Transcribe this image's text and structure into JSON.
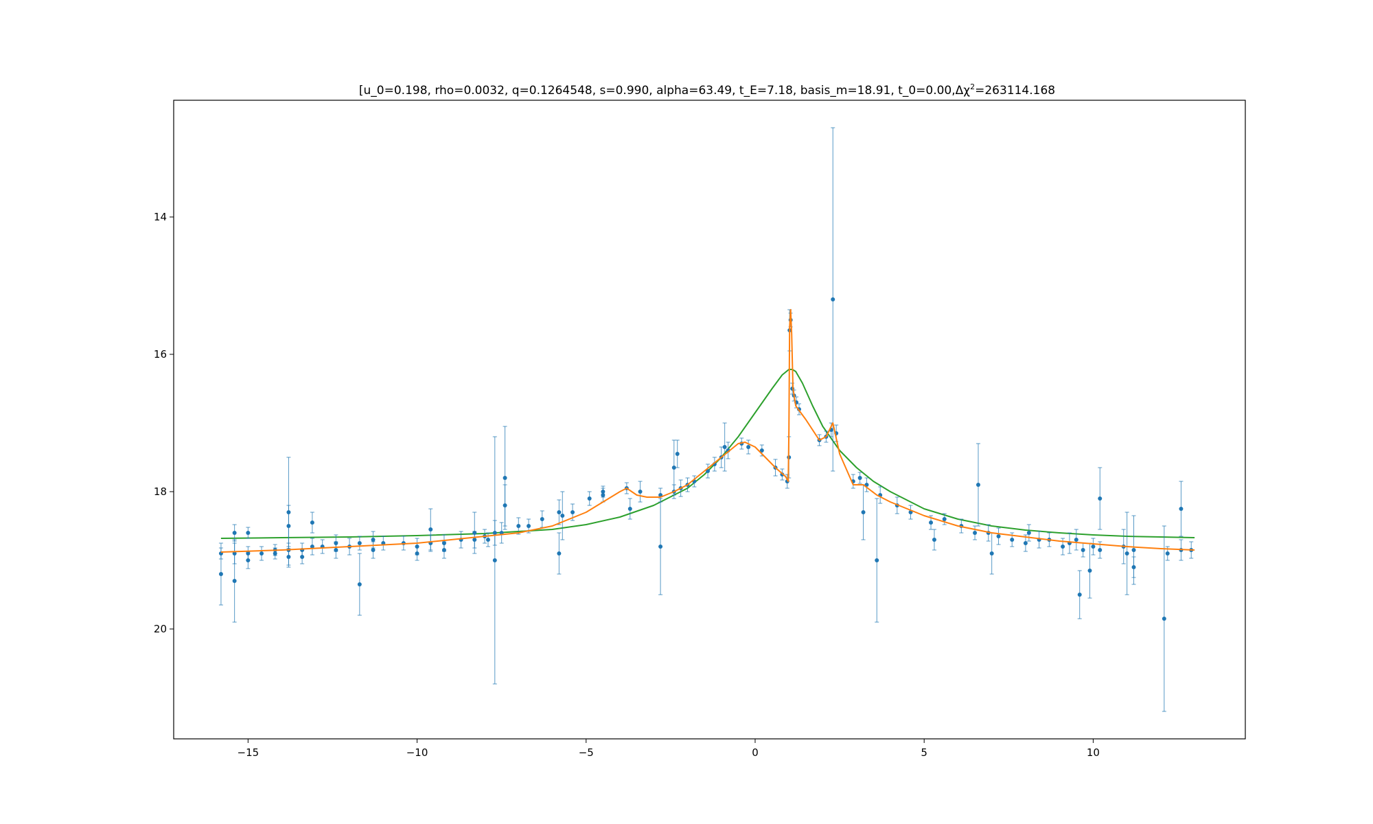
{
  "chart_data": {
    "type": "scatter",
    "title": "[u_0=0.198, rho=0.0032, q=0.1264548, s=0.990, alpha=63.49, t_E=7.18, basis_m=18.91, t_0=0.00,Δχ²=263114.168",
    "title_segments": [
      {
        "text": "[u_0=0.198, rho=0.0032, q=0.1264548, s=0.990, alpha=63.49, t_E=7.18, basis_m=18.91, t_0=0.00,Δ",
        "sup": false
      },
      {
        "text": "χ",
        "sup": false
      },
      {
        "text": "2",
        "sup": true
      },
      {
        "text": "=263114.168",
        "sup": false
      }
    ],
    "xlabel": "",
    "ylabel": "",
    "xlim": [
      -17.2,
      14.5
    ],
    "ylim": [
      21.6,
      12.3
    ],
    "y_inverted": true,
    "grid": false,
    "legend": null,
    "x_ticks": [
      -15,
      -10,
      -5,
      0,
      5,
      10
    ],
    "y_ticks": [
      14,
      16,
      18,
      20
    ],
    "colors": {
      "observations": "#1f77b4",
      "binary_model": "#ff7f0e",
      "point_lens_model": "#2ca02c",
      "axes": "#000000"
    },
    "series": [
      {
        "kind": "errorbar",
        "x": [
          -15.8,
          -15.8,
          -15.4,
          -15.4,
          -15.4,
          -15.0,
          -15.0,
          -15.0,
          -14.6,
          -14.2,
          -14.2,
          -13.8,
          -13.8,
          -13.8,
          -13.8,
          -13.4,
          -13.4,
          -13.1,
          -13.1,
          -12.8,
          -12.4,
          -12.4,
          -12.0,
          -11.7,
          -11.7,
          -11.3,
          -11.3,
          -11.0,
          -10.4,
          -10.0,
          -10.0,
          -9.6,
          -9.6,
          -9.2,
          -9.2,
          -8.7,
          -8.3,
          -8.3,
          -8.0,
          -7.9,
          -7.7,
          -7.7,
          -7.5,
          -7.4,
          -7.4,
          -7.0,
          -6.7,
          -6.3,
          -5.8,
          -5.8,
          -5.7,
          -5.4,
          -4.9,
          -4.5,
          -4.5,
          -3.8,
          -3.7,
          -3.4,
          -2.8,
          -2.8,
          -2.4,
          -2.4,
          -2.3,
          -2.2,
          -2.0,
          -1.8,
          -1.4,
          -1.2,
          -1.0,
          -0.9,
          -0.8,
          -0.4,
          -0.2,
          0.2,
          0.6,
          0.8,
          0.95,
          1.0,
          1.02,
          1.05,
          1.1,
          1.15,
          1.22,
          1.3,
          1.9,
          2.1,
          2.25,
          2.3,
          2.4,
          2.9,
          3.1,
          3.2,
          3.3,
          3.6,
          3.7,
          4.2,
          4.6,
          5.2,
          5.3,
          5.6,
          6.1,
          6.5,
          6.6,
          6.9,
          7.0,
          7.2,
          7.6,
          8.0,
          8.1,
          8.4,
          8.7,
          9.1,
          9.3,
          9.5,
          9.6,
          9.7,
          9.9,
          10.0,
          10.2,
          10.2,
          10.9,
          11.0,
          11.2,
          11.2,
          12.1,
          12.2,
          12.6,
          12.6,
          12.9
        ],
        "y": [
          18.9,
          19.2,
          18.6,
          18.9,
          19.3,
          18.6,
          18.9,
          19.0,
          18.9,
          18.85,
          18.9,
          18.3,
          18.5,
          18.85,
          18.95,
          18.85,
          18.95,
          18.45,
          18.8,
          18.8,
          18.75,
          18.85,
          18.8,
          18.75,
          19.35,
          18.7,
          18.85,
          18.75,
          18.75,
          18.8,
          18.9,
          18.55,
          18.75,
          18.75,
          18.85,
          18.7,
          18.6,
          18.7,
          18.65,
          18.7,
          18.6,
          19.0,
          18.6,
          17.8,
          18.2,
          18.5,
          18.5,
          18.4,
          18.3,
          18.9,
          18.35,
          18.3,
          18.1,
          18.0,
          18.05,
          17.95,
          18.25,
          18.0,
          18.05,
          18.8,
          18.0,
          17.65,
          17.45,
          17.95,
          17.9,
          17.85,
          17.7,
          17.6,
          17.5,
          17.35,
          17.4,
          17.3,
          17.35,
          17.4,
          17.65,
          17.75,
          17.85,
          17.5,
          15.65,
          15.5,
          16.5,
          16.6,
          16.7,
          16.8,
          17.25,
          17.2,
          17.1,
          15.2,
          17.15,
          17.85,
          17.8,
          18.3,
          17.9,
          19.0,
          18.05,
          18.2,
          18.3,
          18.45,
          18.7,
          18.4,
          18.5,
          18.6,
          17.9,
          18.6,
          18.9,
          18.65,
          18.7,
          18.75,
          18.6,
          18.7,
          18.7,
          18.8,
          18.75,
          18.7,
          19.5,
          18.85,
          19.15,
          18.8,
          18.1,
          18.85,
          18.8,
          18.9,
          19.1,
          18.85,
          19.85,
          18.9,
          18.25,
          18.85,
          18.85
        ],
        "yerr": [
          0.08,
          0.45,
          0.12,
          0.15,
          0.6,
          0.08,
          0.1,
          0.12,
          0.1,
          0.08,
          0.08,
          0.8,
          0.3,
          0.1,
          0.12,
          0.1,
          0.1,
          0.15,
          0.12,
          0.1,
          0.12,
          0.12,
          0.12,
          0.1,
          0.45,
          0.12,
          0.12,
          0.1,
          0.1,
          0.12,
          0.1,
          0.3,
          0.12,
          0.12,
          0.12,
          0.12,
          0.3,
          0.12,
          0.1,
          0.1,
          0.18,
          1.8,
          0.15,
          0.75,
          0.3,
          0.12,
          0.1,
          0.12,
          0.18,
          0.3,
          0.35,
          0.12,
          0.1,
          0.08,
          0.1,
          0.08,
          0.15,
          0.15,
          0.1,
          0.7,
          0.1,
          0.4,
          0.2,
          0.12,
          0.1,
          0.08,
          0.1,
          0.1,
          0.15,
          0.35,
          0.12,
          0.08,
          0.1,
          0.08,
          0.12,
          0.08,
          0.1,
          0.3,
          0.3,
          0.1,
          0.08,
          0.08,
          0.08,
          0.08,
          0.08,
          0.08,
          0.1,
          2.5,
          0.12,
          0.1,
          0.08,
          0.4,
          0.1,
          0.9,
          0.12,
          0.12,
          0.1,
          0.1,
          0.15,
          0.08,
          0.1,
          0.1,
          0.6,
          0.12,
          0.3,
          0.12,
          0.1,
          0.12,
          0.12,
          0.12,
          0.1,
          0.12,
          0.15,
          0.15,
          0.35,
          0.1,
          0.4,
          0.12,
          0.45,
          0.12,
          0.25,
          0.6,
          0.15,
          0.5,
          1.35,
          0.1,
          0.4,
          0.15,
          0.12
        ]
      },
      {
        "kind": "line",
        "x": [
          -15.8,
          -14,
          -12,
          -10,
          -8,
          -7,
          -6,
          -5,
          -4.5,
          -4,
          -3.8,
          -3.5,
          -3.2,
          -2.8,
          -2.4,
          -2,
          -1.5,
          -1,
          -0.5,
          -0.3,
          0,
          0.3,
          0.6,
          0.9,
          0.98,
          1.0,
          1.02,
          1.05,
          1.08,
          1.12,
          1.2,
          1.5,
          1.9,
          2.1,
          2.3,
          2.5,
          2.9,
          3.2,
          3.6,
          4,
          5,
          6,
          7,
          8,
          9,
          10,
          11,
          12,
          13
        ],
        "y": [
          18.88,
          18.85,
          18.8,
          18.75,
          18.65,
          18.6,
          18.5,
          18.3,
          18.15,
          18.0,
          17.95,
          18.05,
          18.08,
          18.08,
          18.0,
          17.9,
          17.7,
          17.5,
          17.3,
          17.28,
          17.35,
          17.5,
          17.65,
          17.78,
          17.85,
          17.1,
          15.6,
          15.35,
          15.7,
          16.5,
          16.75,
          16.95,
          17.25,
          17.2,
          17.0,
          17.45,
          17.9,
          17.9,
          18.05,
          18.15,
          18.35,
          18.5,
          18.6,
          18.66,
          18.72,
          18.76,
          18.8,
          18.83,
          18.85
        ]
      },
      {
        "kind": "line",
        "x": [
          -15.8,
          -14,
          -12,
          -10,
          -8,
          -6,
          -5,
          -4,
          -3,
          -2,
          -1.5,
          -1,
          -0.5,
          0,
          0.5,
          0.8,
          1.0,
          1.1,
          1.2,
          1.4,
          1.7,
          2.0,
          2.5,
          3,
          3.5,
          4,
          5,
          6,
          7,
          8,
          9,
          10,
          11,
          12,
          13
        ],
        "y": [
          18.68,
          18.67,
          18.66,
          18.64,
          18.61,
          18.55,
          18.48,
          18.37,
          18.2,
          17.95,
          17.75,
          17.5,
          17.2,
          16.85,
          16.5,
          16.3,
          16.22,
          16.22,
          16.25,
          16.42,
          16.75,
          17.05,
          17.4,
          17.65,
          17.85,
          18.0,
          18.25,
          18.4,
          18.5,
          18.56,
          18.6,
          18.63,
          18.65,
          18.66,
          18.67
        ]
      }
    ]
  }
}
